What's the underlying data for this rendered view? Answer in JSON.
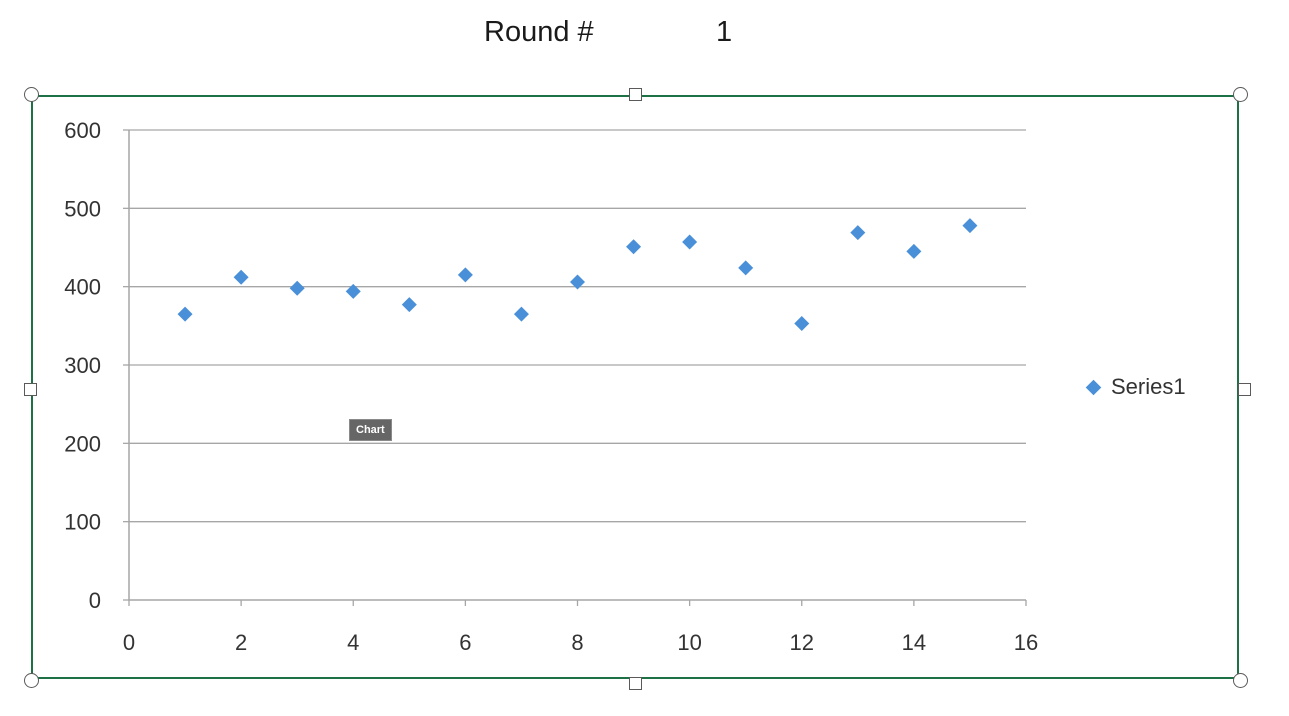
{
  "header": {
    "round_label": "Round #",
    "round_value": "1"
  },
  "tooltip": {
    "label": "Chart"
  },
  "legend": {
    "series_name": "Series1"
  },
  "colors": {
    "marker": "#4a90d9",
    "frame_border": "#1e7145",
    "grid": "#a6a6a6"
  },
  "chart_data": {
    "type": "scatter",
    "title": "",
    "xlabel": "",
    "ylabel": "",
    "xlim": [
      0,
      16
    ],
    "ylim": [
      0,
      600
    ],
    "x_ticks": [
      0,
      2,
      4,
      6,
      8,
      10,
      12,
      14,
      16
    ],
    "y_ticks": [
      0,
      100,
      200,
      300,
      400,
      500,
      600
    ],
    "grid": "horizontal",
    "legend_position": "right",
    "marker": "diamond",
    "series": [
      {
        "name": "Series1",
        "x": [
          1,
          2,
          3,
          4,
          5,
          6,
          7,
          8,
          9,
          10,
          11,
          12,
          13,
          14,
          15
        ],
        "y": [
          365,
          412,
          398,
          394,
          377,
          415,
          365,
          406,
          451,
          457,
          424,
          353,
          469,
          445,
          478
        ]
      }
    ]
  }
}
